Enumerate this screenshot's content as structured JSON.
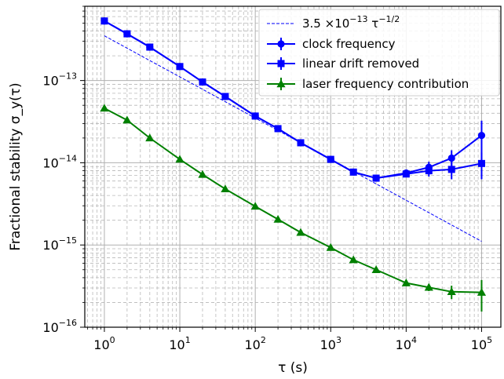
{
  "chart_data": {
    "type": "line",
    "xscale": "log",
    "yscale": "log",
    "xlim": [
      0.55,
      180000
    ],
    "ylim": [
      1e-16,
      8e-13
    ],
    "xlabel": "τ (s)",
    "ylabel": "Fractional stability σ_y(τ)",
    "grid": true,
    "legend_position": "top-right",
    "x_ticks": [
      {
        "value": 1,
        "base": "10",
        "exp": "0"
      },
      {
        "value": 10,
        "base": "10",
        "exp": "1"
      },
      {
        "value": 100,
        "base": "10",
        "exp": "2"
      },
      {
        "value": 1000,
        "base": "10",
        "exp": "3"
      },
      {
        "value": 10000,
        "base": "10",
        "exp": "4"
      },
      {
        "value": 100000,
        "base": "10",
        "exp": "5"
      }
    ],
    "y_ticks": [
      {
        "value": 1e-16,
        "base": "10",
        "exp": "−16"
      },
      {
        "value": 1e-15,
        "base": "10",
        "exp": "−15"
      },
      {
        "value": 1e-14,
        "base": "10",
        "exp": "−14"
      },
      {
        "value": 1e-13,
        "base": "10",
        "exp": "−13"
      }
    ],
    "reference_line": {
      "label": "3.5 ×10^−13 τ^−1/2",
      "label_parts": {
        "coef": "3.5 ×10",
        "exp1": "−13",
        "tau": " τ",
        "exp2": "−1/2"
      },
      "coefficient": 3.5e-13,
      "exponent": -0.5,
      "x_range": [
        1,
        100000
      ],
      "color": "#0000ff"
    },
    "series": [
      {
        "name": "clock frequency",
        "color": "#0000ff",
        "marker": "circle",
        "x": [
          1,
          2,
          4,
          10,
          20,
          40,
          100,
          200,
          400,
          1000,
          2000,
          4000,
          10000,
          20000,
          40000,
          100000
        ],
        "y": [
          5.3e-13,
          3.7e-13,
          2.55e-13,
          1.48e-13,
          9.6e-14,
          6.4e-14,
          3.7e-14,
          2.6e-14,
          1.75e-14,
          1.1e-14,
          7.7e-15,
          6.5e-15,
          7.5e-15,
          8.8e-15,
          1.14e-14,
          2.15e-14
        ],
        "err": [
          0,
          0,
          0,
          0,
          0,
          0,
          0,
          0,
          0,
          0,
          0,
          0,
          0,
          1.5e-15,
          2.8e-15,
          1.1e-14
        ]
      },
      {
        "name": "linear drift removed",
        "color": "#0000ff",
        "marker": "square",
        "x": [
          1,
          2,
          4,
          10,
          20,
          40,
          100,
          200,
          400,
          1000,
          2000,
          4000,
          10000,
          20000,
          40000,
          100000
        ],
        "y": [
          5.3e-13,
          3.7e-13,
          2.55e-13,
          1.48e-13,
          9.6e-14,
          6.4e-14,
          3.7e-14,
          2.6e-14,
          1.75e-14,
          1.1e-14,
          7.7e-15,
          6.5e-15,
          7.3e-15,
          8e-15,
          8.3e-15,
          9.8e-15
        ],
        "err": [
          0,
          0,
          0,
          0,
          0,
          0,
          0,
          0,
          0,
          0,
          0,
          0,
          6e-16,
          1.2e-15,
          2e-15,
          3.5e-15
        ]
      },
      {
        "name": "laser frequency contribution",
        "color": "#008000",
        "marker": "triangle",
        "x": [
          1,
          2,
          4,
          10,
          20,
          40,
          100,
          200,
          400,
          1000,
          2000,
          4000,
          10000,
          20000,
          40000,
          100000
        ],
        "y": [
          4.6e-14,
          3.3e-14,
          2e-14,
          1.1e-14,
          7.2e-15,
          4.8e-15,
          2.95e-15,
          2.05e-15,
          1.42e-15,
          9.3e-16,
          6.6e-16,
          5e-16,
          3.45e-16,
          3.05e-16,
          2.7e-16,
          2.65e-16
        ],
        "err": [
          0,
          0,
          0,
          0,
          0,
          0,
          0,
          0,
          0,
          0,
          0,
          0,
          2e-17,
          3e-17,
          5e-17,
          1.1e-16
        ]
      }
    ]
  }
}
